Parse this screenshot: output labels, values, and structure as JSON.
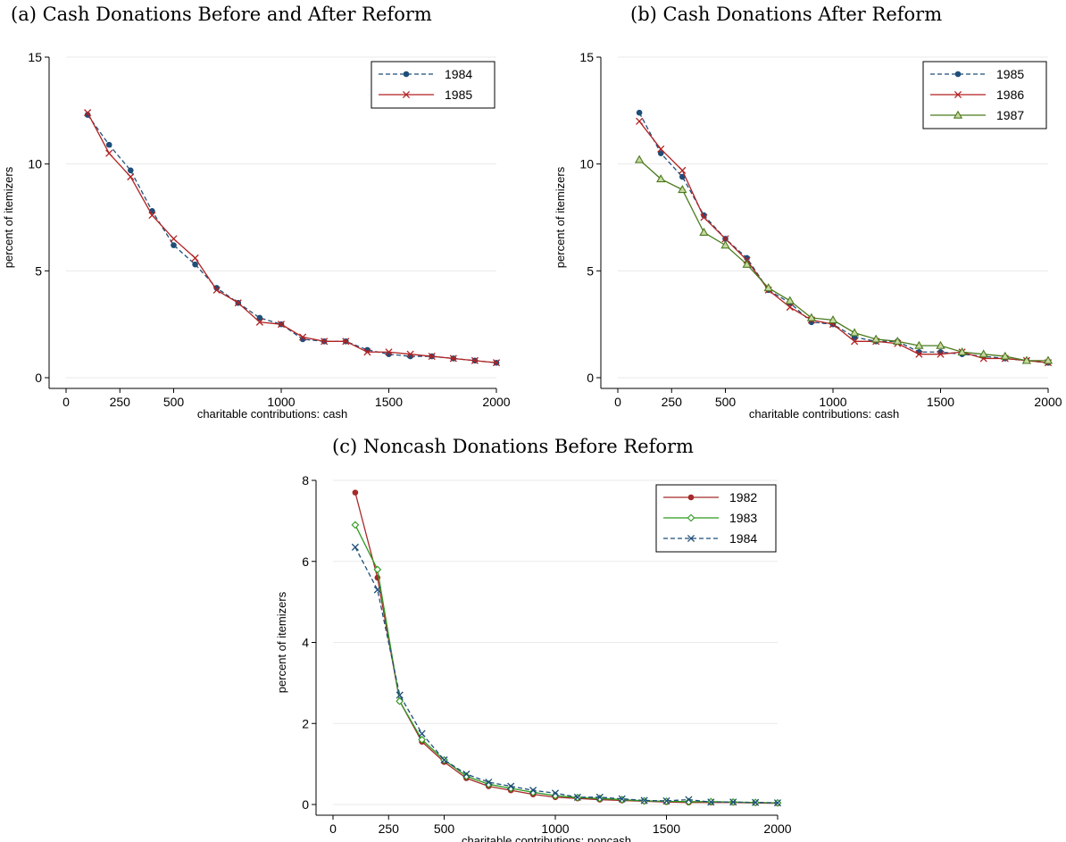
{
  "panels": [
    {
      "title": "(a) Cash Donations Before and After Reform"
    },
    {
      "title": "(b) Cash Donations After Reform"
    },
    {
      "title": "(c) Noncash Donations Before Reform"
    }
  ],
  "chart_data": [
    {
      "id": "a",
      "type": "line",
      "title": "(a) Cash Donations Before and After Reform",
      "xlabel": "charitable contributions: cash",
      "ylabel": "percent of itemizers",
      "xlim": [
        0,
        2000
      ],
      "ylim": [
        0,
        15
      ],
      "xticks": [
        0,
        250,
        500,
        1000,
        1500,
        2000
      ],
      "yticks": [
        0,
        5,
        10,
        15
      ],
      "grid": "horizontal",
      "legend": "top-right",
      "x": [
        100,
        200,
        300,
        400,
        500,
        600,
        700,
        800,
        900,
        1000,
        1100,
        1200,
        1300,
        1400,
        1500,
        1600,
        1700,
        1800,
        1900,
        2000
      ],
      "series": [
        {
          "name": "1984",
          "color": "#1f4e79",
          "dash": "dashed",
          "marker": "dot",
          "values": [
            12.3,
            10.9,
            9.7,
            7.8,
            6.2,
            5.3,
            4.2,
            3.5,
            2.8,
            2.5,
            1.8,
            1.7,
            1.7,
            1.3,
            1.1,
            1.0,
            1.0,
            0.9,
            0.8,
            0.7
          ]
        },
        {
          "name": "1985",
          "color": "#b22222",
          "dash": "solid",
          "marker": "x",
          "values": [
            12.4,
            10.5,
            9.4,
            7.6,
            6.5,
            5.6,
            4.1,
            3.5,
            2.6,
            2.5,
            1.9,
            1.7,
            1.7,
            1.2,
            1.2,
            1.1,
            1.0,
            0.9,
            0.8,
            0.7
          ]
        }
      ]
    },
    {
      "id": "b",
      "type": "line",
      "title": "(b) Cash Donations After Reform",
      "xlabel": "charitable contributions: cash",
      "ylabel": "percent of itemizers",
      "xlim": [
        0,
        2000
      ],
      "ylim": [
        0,
        15
      ],
      "xticks": [
        0,
        250,
        500,
        1000,
        1500,
        2000
      ],
      "yticks": [
        0,
        5,
        10,
        15
      ],
      "grid": "horizontal",
      "legend": "top-right",
      "x": [
        100,
        200,
        300,
        400,
        500,
        600,
        700,
        800,
        900,
        1000,
        1100,
        1200,
        1300,
        1400,
        1500,
        1600,
        1700,
        1800,
        1900,
        2000
      ],
      "series": [
        {
          "name": "1985",
          "color": "#1f4e79",
          "dash": "dashed",
          "marker": "dot",
          "values": [
            12.4,
            10.5,
            9.4,
            7.6,
            6.5,
            5.6,
            4.1,
            3.5,
            2.6,
            2.5,
            1.9,
            1.7,
            1.7,
            1.2,
            1.2,
            1.1,
            1.0,
            0.9,
            0.8,
            0.7
          ]
        },
        {
          "name": "1986",
          "color": "#b22222",
          "dash": "solid",
          "marker": "x",
          "values": [
            12.0,
            10.7,
            9.7,
            7.5,
            6.5,
            5.5,
            4.1,
            3.3,
            2.7,
            2.5,
            1.7,
            1.7,
            1.6,
            1.1,
            1.1,
            1.2,
            0.9,
            0.9,
            0.8,
            0.7
          ]
        },
        {
          "name": "1987",
          "color": "#4a7a1e",
          "dash": "solid",
          "marker": "triangle",
          "values": [
            10.2,
            9.3,
            8.8,
            6.8,
            6.2,
            5.3,
            4.2,
            3.6,
            2.8,
            2.7,
            2.1,
            1.8,
            1.7,
            1.5,
            1.5,
            1.2,
            1.1,
            1.0,
            0.8,
            0.8
          ]
        }
      ]
    },
    {
      "id": "c",
      "type": "line",
      "title": "(c) Noncash Donations Before Reform",
      "xlabel": "charitable contributions: noncash",
      "ylabel": "percent of itemizers",
      "xlim": [
        0,
        2000
      ],
      "ylim": [
        0,
        8
      ],
      "xticks": [
        0,
        250,
        500,
        1000,
        1500,
        2000
      ],
      "yticks": [
        0,
        2,
        4,
        6,
        8
      ],
      "grid": "horizontal",
      "legend": "top-right",
      "x": [
        100,
        200,
        300,
        400,
        500,
        600,
        700,
        800,
        900,
        1000,
        1100,
        1200,
        1300,
        1400,
        1500,
        1600,
        1700,
        1800,
        1900,
        2000
      ],
      "series": [
        {
          "name": "1982",
          "color": "#a52a2a",
          "dash": "solid",
          "marker": "dot",
          "values": [
            7.7,
            5.6,
            2.55,
            1.55,
            1.05,
            0.65,
            0.45,
            0.35,
            0.25,
            0.18,
            0.15,
            0.12,
            0.1,
            0.08,
            0.06,
            0.05,
            0.05,
            0.05,
            0.04,
            0.03
          ]
        },
        {
          "name": "1983",
          "color": "#2e9a1f",
          "dash": "solid",
          "marker": "diamond",
          "values": [
            6.9,
            5.8,
            2.55,
            1.6,
            1.1,
            0.7,
            0.5,
            0.4,
            0.3,
            0.22,
            0.17,
            0.15,
            0.12,
            0.09,
            0.08,
            0.07,
            0.07,
            0.06,
            0.05,
            0.04
          ]
        },
        {
          "name": "1984",
          "color": "#1f4e79",
          "dash": "dashed",
          "marker": "x",
          "values": [
            6.35,
            5.3,
            2.7,
            1.75,
            1.1,
            0.75,
            0.55,
            0.45,
            0.35,
            0.28,
            0.18,
            0.18,
            0.14,
            0.1,
            0.09,
            0.12,
            0.06,
            0.06,
            0.05,
            0.04
          ]
        }
      ]
    }
  ]
}
